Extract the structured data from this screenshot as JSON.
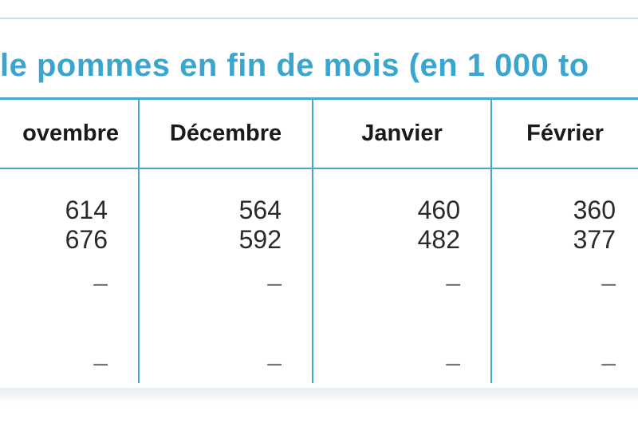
{
  "table": {
    "title": "le pommes en fin de mois (en 1 000 to",
    "headers": [
      "ovembre",
      "Décembre",
      "Janvier",
      "Février"
    ],
    "rows": [
      [
        "614",
        "564",
        "460",
        "360"
      ],
      [
        "676",
        "592",
        "482",
        "377"
      ],
      [
        "–",
        "–",
        "–",
        "–"
      ],
      [
        "",
        "",
        "",
        ""
      ],
      [
        "–",
        "–",
        "–",
        "–"
      ]
    ]
  },
  "colors": {
    "title": "#3aa6cf",
    "rules": "#4aa6c8",
    "frame": "#bfe3f0"
  }
}
